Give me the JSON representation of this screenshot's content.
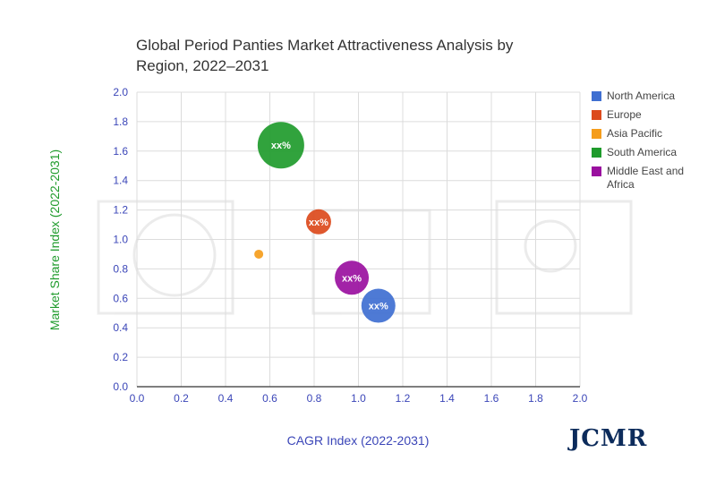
{
  "chart_data": {
    "type": "bubble",
    "title": "Global Period Panties Market Attractiveness Analysis by Region, 2022–2031",
    "xlabel": "CAGR Index (2022-2031)",
    "ylabel": "Market Share Index (2022-2031)",
    "xlim": [
      0,
      2.0
    ],
    "ylim": [
      0,
      2.0
    ],
    "xticks": [
      "0.0",
      "0.2",
      "0.4",
      "0.6",
      "0.8",
      "1.0",
      "1.2",
      "1.4",
      "1.6",
      "1.8",
      "2.0"
    ],
    "yticks": [
      "0.0",
      "0.2",
      "0.4",
      "0.6",
      "0.8",
      "1.0",
      "1.2",
      "1.4",
      "1.6",
      "1.8",
      "2.0"
    ],
    "grid": true,
    "legend_position": "right",
    "series": [
      {
        "name": "North America",
        "color": "#3f6fd1",
        "x": 1.09,
        "y": 0.55,
        "label": "xx%",
        "size": "medium"
      },
      {
        "name": "Europe",
        "color": "#dc4a1c",
        "x": 0.82,
        "y": 1.12,
        "label": "xx%",
        "size": "small"
      },
      {
        "name": "Asia Pacific",
        "color": "#f59d1c",
        "x": 0.55,
        "y": 0.9,
        "label": "",
        "size": "tiny"
      },
      {
        "name": "South America",
        "color": "#1f9b2c",
        "x": 0.65,
        "y": 1.64,
        "label": "xx%",
        "size": "large"
      },
      {
        "name": "Middle East and Africa",
        "color": "#9a109f",
        "x": 0.97,
        "y": 0.74,
        "label": "xx%",
        "size": "medium"
      }
    ],
    "colors": {
      "ylabel": "#1f9b2c",
      "xlabel": "#3b46b8",
      "ticks": "#3b46b8"
    }
  },
  "brand": "JCMR"
}
